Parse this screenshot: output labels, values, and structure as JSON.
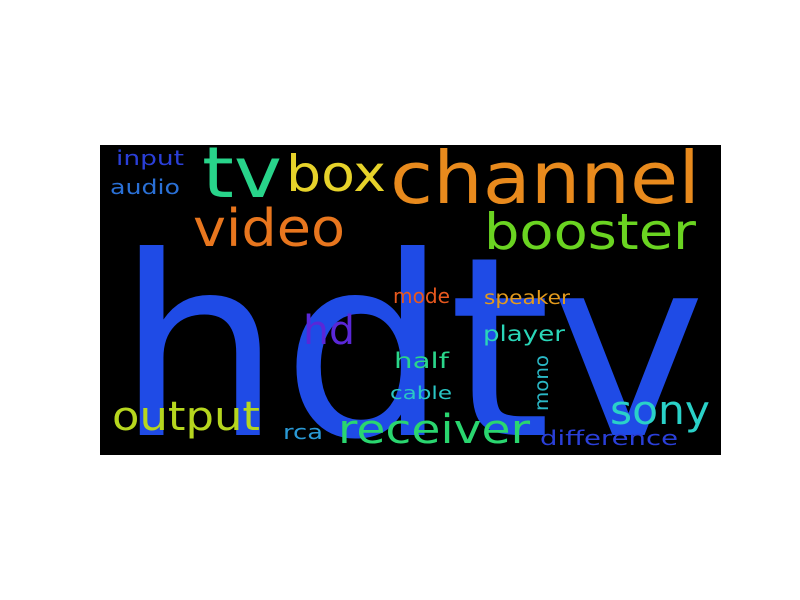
{
  "background": "#000000",
  "words": [
    {
      "text": "hdtv",
      "color": "#1f4be6"
    },
    {
      "text": "channel",
      "color": "#e88a1d"
    },
    {
      "text": "tv",
      "color": "#28d48a"
    },
    {
      "text": "box",
      "color": "#e6d22a"
    },
    {
      "text": "video",
      "color": "#e8761e"
    },
    {
      "text": "booster",
      "color": "#6ad421"
    },
    {
      "text": "hd",
      "color": "#5a27d8"
    },
    {
      "text": "output",
      "color": "#b6d61e"
    },
    {
      "text": "receiver",
      "color": "#2ad66f"
    },
    {
      "text": "sony",
      "color": "#2ad1c8"
    },
    {
      "text": "input",
      "color": "#2a3fd8"
    },
    {
      "text": "audio",
      "color": "#2a70d6"
    },
    {
      "text": "mode",
      "color": "#e8581e"
    },
    {
      "text": "speaker",
      "color": "#e39a1d"
    },
    {
      "text": "player",
      "color": "#2ad6b8"
    },
    {
      "text": "half",
      "color": "#2ad68a"
    },
    {
      "text": "cable",
      "color": "#2ac6c4"
    },
    {
      "text": "mono",
      "color": "#2ab8c6"
    },
    {
      "text": "rca",
      "color": "#2a9ad6"
    },
    {
      "text": "difference",
      "color": "#2a3fd8"
    }
  ]
}
